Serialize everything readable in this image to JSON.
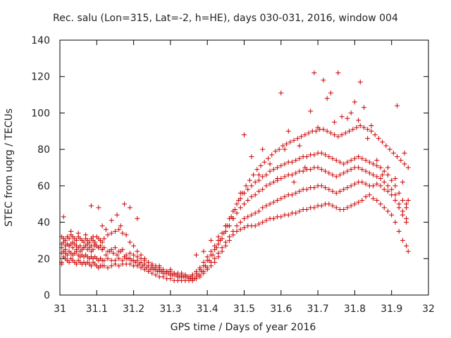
{
  "chart_data": {
    "type": "scatter",
    "title": "Rec. salu (Lon=315, Lat=-2, h=HE), days 030-031, 2016, window 004",
    "xlabel": "GPS time / Days of year 2016",
    "ylabel": "STEC from uqrg / TECUs",
    "xlim": [
      31,
      32
    ],
    "ylim": [
      0,
      140
    ],
    "x_ticks": [
      31,
      31.1,
      31.2,
      31.3,
      31.4,
      31.5,
      31.6,
      31.7,
      31.8,
      31.9,
      32
    ],
    "x_tick_labels": [
      "31",
      "31.1",
      "31.2",
      "31.3",
      "31.4",
      "31.5",
      "31.6",
      "31.7",
      "31.8",
      "31.9",
      "32"
    ],
    "y_ticks": [
      0,
      20,
      40,
      60,
      80,
      100,
      120,
      140
    ],
    "y_tick_labels": [
      "0",
      "20",
      "40",
      "60",
      "80",
      "100",
      "120",
      "140"
    ],
    "grid": false,
    "marker": "plus",
    "colors": {
      "series": "#cc0000",
      "axis": "#000000"
    },
    "series": [
      {
        "x": [
          31.005,
          31.005,
          31.01,
          31.015,
          31.02,
          31.025,
          31.03,
          31.035,
          31.04,
          31.045,
          31.05,
          31.055,
          31.06,
          31.065,
          31.07,
          31.075,
          31.08,
          31.085,
          31.09,
          31.095,
          31.1,
          31.105,
          31.11,
          31.115,
          31.12,
          31.13,
          31.14,
          31.15,
          31.16,
          31.17,
          31.18,
          31.19,
          31.2,
          31.21,
          31.22,
          31.23,
          31.24,
          31.25,
          31.26,
          31.27,
          31.28,
          31.29,
          31.3,
          31.31,
          31.32,
          31.33,
          31.34,
          31.35,
          31.36,
          31.37,
          31.38,
          31.39,
          31.4,
          31.41,
          31.42,
          31.43,
          31.44,
          31.45,
          31.46,
          31.47,
          31.48,
          31.49,
          31.5,
          31.51,
          31.52,
          31.53,
          31.54,
          31.55,
          31.56,
          31.57,
          31.58,
          31.59,
          31.6,
          31.61,
          31.62,
          31.63,
          31.64,
          31.65,
          31.66,
          31.67,
          31.68,
          31.69,
          31.7,
          31.71,
          31.72,
          31.73,
          31.74,
          31.75,
          31.76,
          31.77,
          31.78,
          31.79,
          31.8,
          31.81,
          31.82,
          31.83,
          31.84,
          31.85,
          31.86,
          31.87,
          31.88,
          31.89,
          31.9,
          31.91,
          31.92,
          31.93,
          31.94,
          31.945
        ],
        "y": [
          18,
          17,
          21,
          20,
          19,
          18,
          20,
          19,
          18,
          17,
          19,
          18,
          17,
          18,
          17,
          18,
          17,
          16,
          18,
          17,
          16,
          15,
          16,
          16,
          16,
          15,
          16,
          17,
          16,
          17,
          17,
          17,
          16,
          16,
          15,
          14,
          13,
          12,
          11,
          10,
          10,
          9,
          9,
          8,
          8,
          8,
          8,
          8,
          8,
          9,
          10,
          12,
          14,
          16,
          18,
          21,
          24,
          27,
          30,
          33,
          35,
          36,
          37,
          38,
          38,
          38,
          39,
          40,
          41,
          42,
          42,
          43,
          43,
          44,
          44,
          45,
          45,
          46,
          47,
          47,
          48,
          48,
          49,
          49,
          50,
          50,
          49,
          48,
          47,
          47,
          48,
          49,
          50,
          51,
          52,
          54,
          55,
          53,
          52,
          50,
          48,
          46,
          44,
          40,
          35,
          30,
          27,
          24
        ]
      },
      {
        "x": [
          31.005,
          31.01,
          31.015,
          31.02,
          31.025,
          31.03,
          31.035,
          31.04,
          31.045,
          31.05,
          31.055,
          31.06,
          31.065,
          31.07,
          31.075,
          31.08,
          31.085,
          31.09,
          31.095,
          31.1,
          31.105,
          31.11,
          31.115,
          31.12,
          31.13,
          31.14,
          31.15,
          31.16,
          31.17,
          31.18,
          31.19,
          31.2,
          31.21,
          31.22,
          31.23,
          31.24,
          31.25,
          31.26,
          31.27,
          31.28,
          31.29,
          31.3,
          31.31,
          31.32,
          31.33,
          31.34,
          31.35,
          31.36,
          31.37,
          31.38,
          31.39,
          31.4,
          31.41,
          31.42,
          31.43,
          31.44,
          31.45,
          31.46,
          31.47,
          31.48,
          31.49,
          31.5,
          31.51,
          31.52,
          31.53,
          31.54,
          31.55,
          31.56,
          31.57,
          31.58,
          31.59,
          31.6,
          31.61,
          31.62,
          31.63,
          31.64,
          31.65,
          31.66,
          31.67,
          31.68,
          31.69,
          31.7,
          31.71,
          31.72,
          31.73,
          31.74,
          31.75,
          31.76,
          31.77,
          31.78,
          31.79,
          31.8,
          31.81,
          31.82,
          31.83,
          31.84,
          31.85,
          31.86,
          31.87,
          31.88,
          31.89,
          31.9,
          31.91,
          31.92,
          31.93,
          31.94
        ],
        "y": [
          23,
          24,
          23,
          22,
          24,
          23,
          22,
          23,
          24,
          22,
          21,
          22,
          21,
          22,
          21,
          20,
          21,
          20,
          21,
          20,
          19,
          20,
          19,
          19,
          20,
          19,
          19,
          20,
          19,
          20,
          20,
          19,
          19,
          18,
          17,
          16,
          15,
          14,
          13,
          12,
          12,
          11,
          11,
          10,
          10,
          10,
          9,
          9,
          10,
          11,
          13,
          15,
          18,
          20,
          23,
          26,
          29,
          32,
          35,
          38,
          40,
          42,
          43,
          44,
          45,
          46,
          48,
          49,
          50,
          51,
          52,
          53,
          54,
          55,
          55,
          56,
          57,
          58,
          58,
          59,
          59,
          60,
          60,
          59,
          58,
          57,
          56,
          57,
          58,
          59,
          60,
          61,
          62,
          62,
          61,
          60,
          60,
          61,
          60,
          58,
          57,
          55,
          52,
          48,
          44,
          40
        ]
      },
      {
        "x": [
          31.005,
          31.01,
          31.015,
          31.02,
          31.025,
          31.03,
          31.035,
          31.04,
          31.045,
          31.05,
          31.055,
          31.06,
          31.065,
          31.07,
          31.075,
          31.08,
          31.085,
          31.09,
          31.095,
          31.1,
          31.105,
          31.11,
          31.115,
          31.12,
          31.13,
          31.14,
          31.15,
          31.16,
          31.17,
          31.18,
          31.19,
          31.2,
          31.21,
          31.22,
          31.23,
          31.24,
          31.25,
          31.26,
          31.27,
          31.28,
          31.29,
          31.3,
          31.31,
          31.32,
          31.33,
          31.34,
          31.35,
          31.36,
          31.37,
          31.38,
          31.39,
          31.4,
          31.41,
          31.42,
          31.43,
          31.44,
          31.45,
          31.46,
          31.47,
          31.48,
          31.49,
          31.5,
          31.51,
          31.52,
          31.53,
          31.54,
          31.55,
          31.56,
          31.57,
          31.58,
          31.59,
          31.6,
          31.61,
          31.62,
          31.63,
          31.64,
          31.65,
          31.66,
          31.67,
          31.68,
          31.69,
          31.7,
          31.71,
          31.72,
          31.73,
          31.74,
          31.75,
          31.76,
          31.77,
          31.78,
          31.79,
          31.8,
          31.81,
          31.82,
          31.83,
          31.84,
          31.85,
          31.86,
          31.87,
          31.88,
          31.89,
          31.9,
          31.91,
          31.92,
          31.93,
          31.94
        ],
        "y": [
          28,
          29,
          27,
          28,
          27,
          28,
          29,
          28,
          27,
          26,
          27,
          25,
          26,
          27,
          28,
          26,
          27,
          25,
          28,
          27,
          26,
          27,
          25,
          26,
          24,
          25,
          26,
          24,
          25,
          22,
          23,
          22,
          21,
          20,
          19,
          18,
          17,
          16,
          15,
          14,
          13,
          13,
          12,
          12,
          11,
          11,
          10,
          11,
          12,
          14,
          16,
          19,
          22,
          25,
          28,
          31,
          35,
          38,
          42,
          45,
          48,
          50,
          52,
          54,
          55,
          57,
          58,
          60,
          61,
          62,
          63,
          64,
          65,
          66,
          66,
          67,
          68,
          68,
          69,
          69,
          70,
          70,
          69,
          68,
          67,
          66,
          65,
          66,
          67,
          68,
          69,
          70,
          70,
          69,
          68,
          67,
          66,
          65,
          64,
          62,
          60,
          58,
          55,
          50,
          46,
          42
        ]
      },
      {
        "x": [
          31.005,
          31.01,
          31.015,
          31.02,
          31.025,
          31.03,
          31.035,
          31.04,
          31.045,
          31.05,
          31.055,
          31.06,
          31.065,
          31.07,
          31.075,
          31.08,
          31.085,
          31.09,
          31.095,
          31.1,
          31.105,
          31.11,
          31.115,
          31.12,
          31.13,
          31.14,
          31.15,
          31.16,
          31.17,
          31.18,
          31.19,
          31.2,
          31.21,
          31.22,
          31.23,
          31.24,
          31.25,
          31.26,
          31.27,
          31.28,
          31.29,
          31.3,
          31.31,
          31.32,
          31.33,
          31.34,
          31.35,
          31.36,
          31.37,
          31.38,
          31.39,
          31.4,
          31.41,
          31.42,
          31.43,
          31.44,
          31.45,
          31.46,
          31.47,
          31.48,
          31.49,
          31.5,
          31.51,
          31.52,
          31.53,
          31.54,
          31.55,
          31.56,
          31.57,
          31.58,
          31.59,
          31.6,
          31.61,
          31.62,
          31.63,
          31.64,
          31.65,
          31.66,
          31.67,
          31.68,
          31.69,
          31.7,
          31.71,
          31.72,
          31.73,
          31.74,
          31.75,
          31.76,
          31.77,
          31.78,
          31.79,
          31.8,
          31.81,
          31.82,
          31.83,
          31.84,
          31.85,
          31.86,
          31.87,
          31.88,
          31.89,
          31.9,
          31.91,
          31.92,
          31.93,
          31.94
        ],
        "y": [
          32,
          31,
          30,
          32,
          31,
          33,
          32,
          31,
          30,
          32,
          31,
          30,
          29,
          31,
          30,
          29,
          31,
          30,
          29,
          32,
          31,
          30,
          29,
          31,
          33,
          34,
          35,
          36,
          34,
          33,
          29,
          27,
          24,
          22,
          20,
          18,
          16,
          15,
          14,
          13,
          13,
          12,
          12,
          11,
          11,
          11,
          10,
          11,
          13,
          15,
          18,
          21,
          24,
          27,
          30,
          34,
          38,
          42,
          46,
          50,
          53,
          56,
          58,
          60,
          62,
          63,
          65,
          66,
          68,
          69,
          70,
          71,
          72,
          73,
          73,
          74,
          75,
          76,
          76,
          77,
          77,
          78,
          78,
          77,
          76,
          75,
          74,
          73,
          72,
          73,
          74,
          75,
          76,
          75,
          74,
          73,
          72,
          71,
          70,
          68,
          66,
          63,
          60,
          56,
          52,
          48
        ]
      },
      {
        "x": [
          31.005,
          31.015,
          31.025,
          31.035,
          31.045,
          31.055,
          31.065,
          31.075,
          31.085,
          31.095,
          31.105,
          31.115,
          31.125,
          31.135,
          31.145,
          31.155,
          31.165,
          31.175,
          31.185,
          31.195,
          31.205,
          31.215,
          31.225,
          31.235,
          31.245,
          31.255,
          31.265,
          31.275,
          31.285,
          31.295,
          31.305,
          31.315,
          31.325,
          31.335,
          31.345,
          31.355,
          31.365,
          31.375,
          31.385,
          31.395,
          31.405,
          31.415,
          31.425,
          31.435,
          31.445,
          31.455,
          31.465,
          31.475,
          31.485,
          31.495,
          31.505,
          31.515,
          31.525,
          31.535,
          31.545,
          31.555,
          31.565,
          31.575,
          31.585,
          31.595,
          31.605,
          31.615,
          31.625,
          31.635,
          31.645,
          31.655,
          31.665,
          31.675,
          31.685,
          31.695,
          31.705,
          31.715,
          31.725,
          31.735,
          31.745,
          31.755,
          31.765,
          31.775,
          31.785,
          31.795,
          31.805,
          31.815,
          31.825,
          31.835,
          31.845,
          31.855,
          31.865,
          31.875,
          31.885,
          31.895,
          31.905,
          31.915,
          31.925,
          31.935,
          31.945
        ],
        "y": [
          26,
          25,
          27,
          26,
          25,
          24,
          26,
          25,
          24,
          27,
          26,
          25,
          22,
          24,
          23,
          22,
          24,
          21,
          20,
          19,
          18,
          17,
          16,
          15,
          14,
          14,
          13,
          13,
          12,
          12,
          11,
          11,
          10,
          10,
          10,
          9,
          9,
          11,
          13,
          16,
          19,
          22,
          26,
          30,
          34,
          38,
          43,
          47,
          52,
          56,
          60,
          63,
          66,
          69,
          71,
          73,
          75,
          77,
          79,
          80,
          82,
          83,
          84,
          85,
          86,
          87,
          88,
          89,
          90,
          90,
          91,
          91,
          90,
          89,
          88,
          87,
          88,
          89,
          90,
          91,
          92,
          93,
          92,
          91,
          90,
          88,
          86,
          84,
          82,
          80,
          78,
          76,
          74,
          72,
          70
        ]
      },
      {
        "x": [
          31.01,
          31.03,
          31.05,
          31.07,
          31.085,
          31.09,
          31.105,
          31.115,
          31.125,
          31.14,
          31.155,
          31.165,
          31.175,
          31.19,
          31.21,
          31.24,
          31.27,
          31.3,
          31.33,
          31.355,
          31.37,
          31.39,
          31.41,
          31.43,
          31.45,
          31.47,
          31.49,
          31.5,
          31.52,
          31.54,
          31.55,
          31.57,
          31.59,
          31.6,
          31.61,
          31.62,
          31.635,
          31.65,
          31.665,
          31.68,
          31.69,
          31.7,
          31.715,
          31.725,
          31.735,
          31.745,
          31.755,
          31.765,
          31.78,
          31.79,
          31.8,
          31.81,
          31.815,
          31.825,
          31.835,
          31.845,
          31.86,
          31.875,
          31.89,
          31.91,
          31.915,
          31.93,
          31.935,
          31.94,
          31.945
        ],
        "y": [
          43,
          35,
          34,
          33,
          49,
          32,
          48,
          38,
          36,
          41,
          44,
          38,
          50,
          48,
          42,
          18,
          16,
          14,
          12,
          10,
          22,
          24,
          30,
          32,
          38,
          42,
          56,
          88,
          76,
          66,
          80,
          72,
          64,
          111,
          80,
          90,
          62,
          82,
          70,
          101,
          122,
          92,
          118,
          108,
          111,
          95,
          122,
          98,
          97,
          100,
          106,
          96,
          117,
          103,
          86,
          93,
          74,
          66,
          70,
          64,
          104,
          62,
          78,
          50,
          52
        ]
      }
    ]
  }
}
